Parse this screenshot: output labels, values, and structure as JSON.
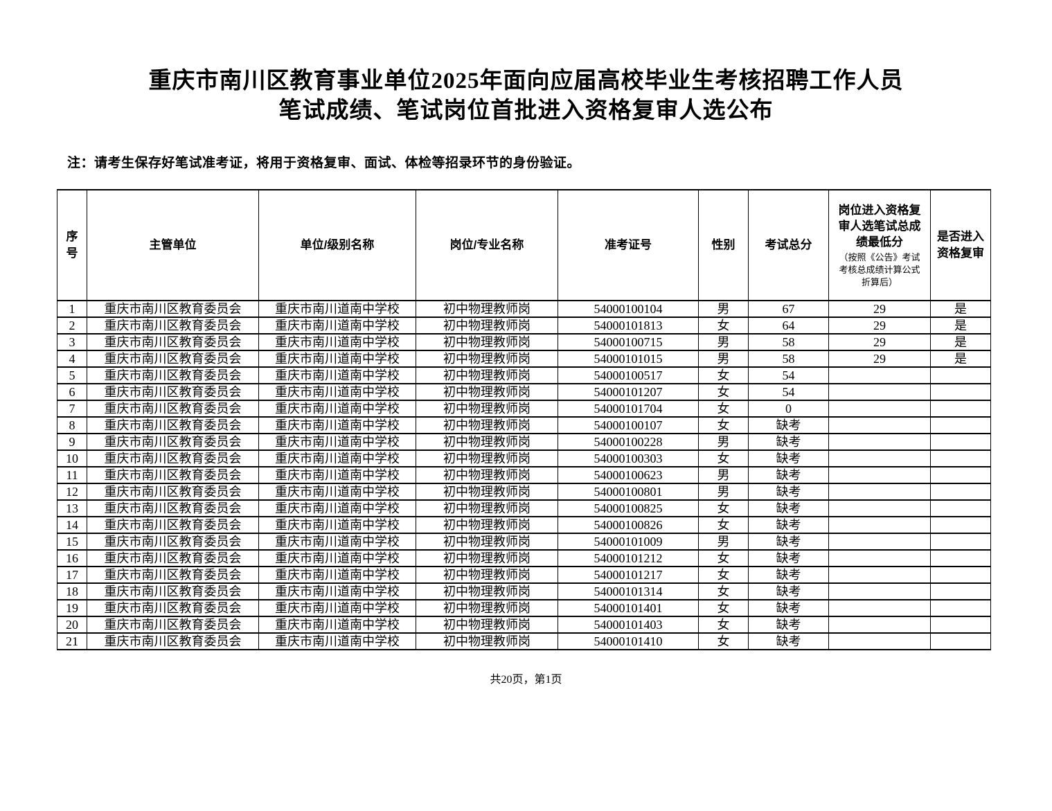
{
  "page": {
    "title_line1": "重庆市南川区教育事业单位2025年面向应届高校毕业生考核招聘工作人员",
    "title_line2": "笔试成绩、笔试岗位首批进入资格复审人选公布",
    "note": "注：请考生保存好笔试准考证，将用于资格复审、面试、体检等招录环节的身份验证。",
    "footer": "共20页，第1页"
  },
  "table": {
    "headers": {
      "seq": "序号",
      "supervisor": "主管单位",
      "unit": "单位/级别名称",
      "position": "岗位/专业名称",
      "ticket": "准考证号",
      "gender": "性别",
      "score": "考试总分",
      "min_score_main": "岗位进入资格复审人选笔试总成绩最低分",
      "min_score_sub": "（按照《公告》考试考核总成绩计算公式折算后）",
      "enter_review": "是否进入资格复审"
    },
    "rows": [
      {
        "seq": "1",
        "supervisor": "重庆市南川区教育委员会",
        "unit": "重庆市南川道南中学校",
        "position": "初中物理教师岗",
        "ticket": "54000100104",
        "gender": "男",
        "score": "67",
        "min": "29",
        "enter": "是"
      },
      {
        "seq": "2",
        "supervisor": "重庆市南川区教育委员会",
        "unit": "重庆市南川道南中学校",
        "position": "初中物理教师岗",
        "ticket": "54000101813",
        "gender": "女",
        "score": "64",
        "min": "29",
        "enter": "是"
      },
      {
        "seq": "3",
        "supervisor": "重庆市南川区教育委员会",
        "unit": "重庆市南川道南中学校",
        "position": "初中物理教师岗",
        "ticket": "54000100715",
        "gender": "男",
        "score": "58",
        "min": "29",
        "enter": "是"
      },
      {
        "seq": "4",
        "supervisor": "重庆市南川区教育委员会",
        "unit": "重庆市南川道南中学校",
        "position": "初中物理教师岗",
        "ticket": "54000101015",
        "gender": "男",
        "score": "58",
        "min": "29",
        "enter": "是"
      },
      {
        "seq": "5",
        "supervisor": "重庆市南川区教育委员会",
        "unit": "重庆市南川道南中学校",
        "position": "初中物理教师岗",
        "ticket": "54000100517",
        "gender": "女",
        "score": "54",
        "min": "",
        "enter": ""
      },
      {
        "seq": "6",
        "supervisor": "重庆市南川区教育委员会",
        "unit": "重庆市南川道南中学校",
        "position": "初中物理教师岗",
        "ticket": "54000101207",
        "gender": "女",
        "score": "54",
        "min": "",
        "enter": ""
      },
      {
        "seq": "7",
        "supervisor": "重庆市南川区教育委员会",
        "unit": "重庆市南川道南中学校",
        "position": "初中物理教师岗",
        "ticket": "54000101704",
        "gender": "女",
        "score": "0",
        "min": "",
        "enter": ""
      },
      {
        "seq": "8",
        "supervisor": "重庆市南川区教育委员会",
        "unit": "重庆市南川道南中学校",
        "position": "初中物理教师岗",
        "ticket": "54000100107",
        "gender": "女",
        "score": "缺考",
        "min": "",
        "enter": ""
      },
      {
        "seq": "9",
        "supervisor": "重庆市南川区教育委员会",
        "unit": "重庆市南川道南中学校",
        "position": "初中物理教师岗",
        "ticket": "54000100228",
        "gender": "男",
        "score": "缺考",
        "min": "",
        "enter": ""
      },
      {
        "seq": "10",
        "supervisor": "重庆市南川区教育委员会",
        "unit": "重庆市南川道南中学校",
        "position": "初中物理教师岗",
        "ticket": "54000100303",
        "gender": "女",
        "score": "缺考",
        "min": "",
        "enter": ""
      },
      {
        "seq": "11",
        "supervisor": "重庆市南川区教育委员会",
        "unit": "重庆市南川道南中学校",
        "position": "初中物理教师岗",
        "ticket": "54000100623",
        "gender": "男",
        "score": "缺考",
        "min": "",
        "enter": ""
      },
      {
        "seq": "12",
        "supervisor": "重庆市南川区教育委员会",
        "unit": "重庆市南川道南中学校",
        "position": "初中物理教师岗",
        "ticket": "54000100801",
        "gender": "男",
        "score": "缺考",
        "min": "",
        "enter": ""
      },
      {
        "seq": "13",
        "supervisor": "重庆市南川区教育委员会",
        "unit": "重庆市南川道南中学校",
        "position": "初中物理教师岗",
        "ticket": "54000100825",
        "gender": "女",
        "score": "缺考",
        "min": "",
        "enter": ""
      },
      {
        "seq": "14",
        "supervisor": "重庆市南川区教育委员会",
        "unit": "重庆市南川道南中学校",
        "position": "初中物理教师岗",
        "ticket": "54000100826",
        "gender": "女",
        "score": "缺考",
        "min": "",
        "enter": ""
      },
      {
        "seq": "15",
        "supervisor": "重庆市南川区教育委员会",
        "unit": "重庆市南川道南中学校",
        "position": "初中物理教师岗",
        "ticket": "54000101009",
        "gender": "男",
        "score": "缺考",
        "min": "",
        "enter": ""
      },
      {
        "seq": "16",
        "supervisor": "重庆市南川区教育委员会",
        "unit": "重庆市南川道南中学校",
        "position": "初中物理教师岗",
        "ticket": "54000101212",
        "gender": "女",
        "score": "缺考",
        "min": "",
        "enter": ""
      },
      {
        "seq": "17",
        "supervisor": "重庆市南川区教育委员会",
        "unit": "重庆市南川道南中学校",
        "position": "初中物理教师岗",
        "ticket": "54000101217",
        "gender": "女",
        "score": "缺考",
        "min": "",
        "enter": ""
      },
      {
        "seq": "18",
        "supervisor": "重庆市南川区教育委员会",
        "unit": "重庆市南川道南中学校",
        "position": "初中物理教师岗",
        "ticket": "54000101314",
        "gender": "女",
        "score": "缺考",
        "min": "",
        "enter": ""
      },
      {
        "seq": "19",
        "supervisor": "重庆市南川区教育委员会",
        "unit": "重庆市南川道南中学校",
        "position": "初中物理教师岗",
        "ticket": "54000101401",
        "gender": "女",
        "score": "缺考",
        "min": "",
        "enter": ""
      },
      {
        "seq": "20",
        "supervisor": "重庆市南川区教育委员会",
        "unit": "重庆市南川道南中学校",
        "position": "初中物理教师岗",
        "ticket": "54000101403",
        "gender": "女",
        "score": "缺考",
        "min": "",
        "enter": ""
      },
      {
        "seq": "21",
        "supervisor": "重庆市南川区教育委员会",
        "unit": "重庆市南川道南中学校",
        "position": "初中物理教师岗",
        "ticket": "54000101410",
        "gender": "女",
        "score": "缺考",
        "min": "",
        "enter": ""
      }
    ]
  }
}
